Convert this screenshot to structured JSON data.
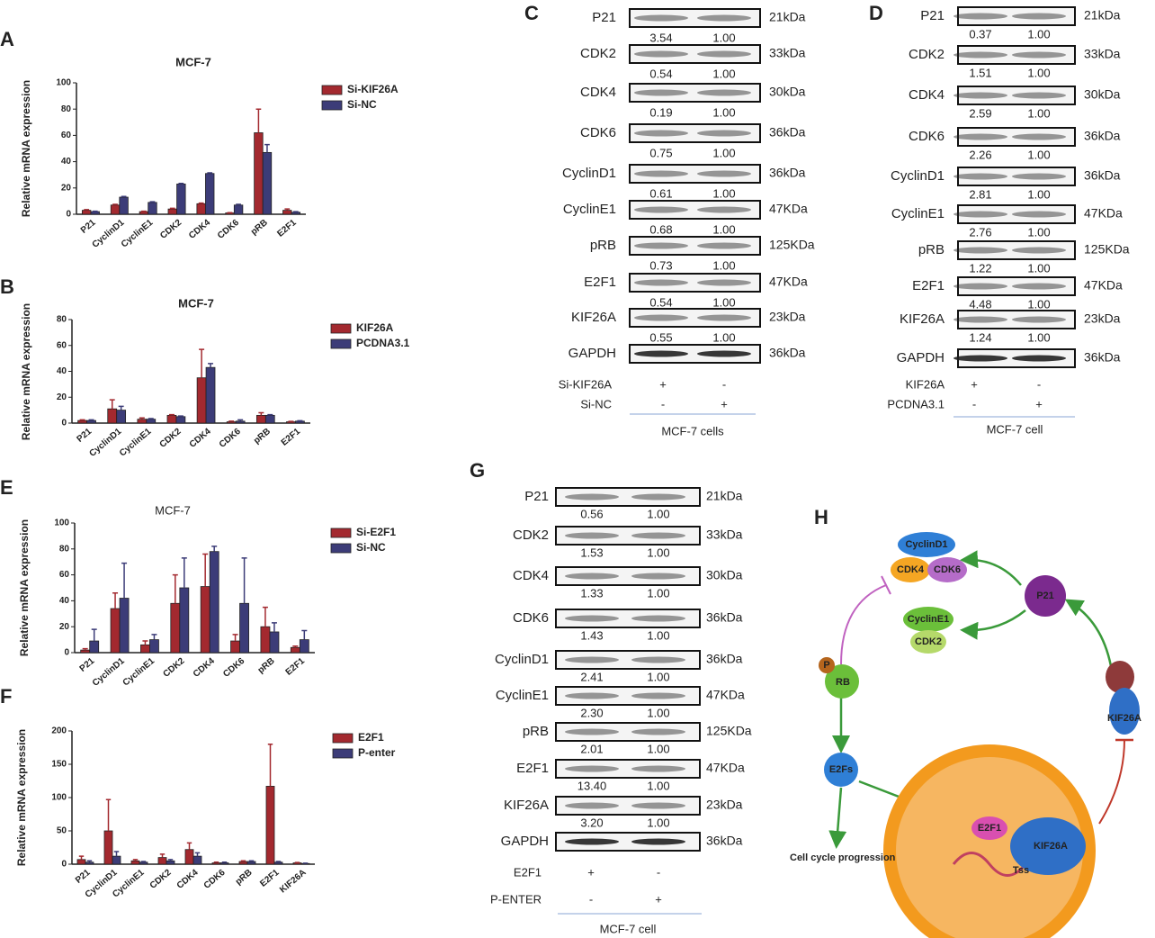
{
  "chart_data": [
    {
      "type": "bar",
      "label": "A",
      "title": "MCF-7",
      "y_label": "Relative mRNA expression",
      "categories": [
        "P21",
        "CyclinD1",
        "CyclinE1",
        "CDK2",
        "CDK4",
        "CDK6",
        "pRB",
        "E2F1"
      ],
      "series": [
        {
          "name": "Si-KIF26A",
          "color": "#a3292f",
          "values": [
            3,
            7,
            2,
            4,
            8,
            1,
            62,
            3
          ],
          "errors": [
            0.5,
            0.5,
            0.3,
            0.5,
            0.5,
            0.2,
            18,
            1
          ]
        },
        {
          "name": "Si-NC",
          "color": "#3c3c78",
          "values": [
            2,
            13,
            9,
            23,
            31,
            7,
            47,
            1.5
          ],
          "errors": [
            0.3,
            0.5,
            0.5,
            0.5,
            0.5,
            0.5,
            6,
            0.5
          ]
        }
      ],
      "ylim": [
        0,
        100
      ],
      "yticks": [
        0,
        20,
        40,
        60,
        80,
        100
      ],
      "legend": "right"
    },
    {
      "type": "bar",
      "label": "B",
      "title": "MCF-7",
      "y_label": "Relative mRNA expression",
      "categories": [
        "P21",
        "CyclinD1",
        "CyclinE1",
        "CDK2",
        "CDK4",
        "CDK6",
        "pRB",
        "E2F1"
      ],
      "series": [
        {
          "name": "KIF26A",
          "color": "#a3292f",
          "values": [
            2,
            11,
            3,
            6,
            35,
            1,
            6,
            1
          ],
          "errors": [
            0.5,
            7,
            1,
            0.5,
            22,
            0.5,
            2,
            0.3
          ]
        },
        {
          "name": "PCDNA3.1",
          "color": "#3c3c78",
          "values": [
            2,
            10,
            3,
            5,
            43,
            1.5,
            6,
            1.5
          ],
          "errors": [
            0.5,
            3,
            0.5,
            0.5,
            3,
            1,
            0.5,
            0.3
          ]
        }
      ],
      "ylim": [
        0,
        80
      ],
      "yticks": [
        0,
        20,
        40,
        60,
        80
      ],
      "legend": "right"
    },
    {
      "type": "bar",
      "label": "E",
      "title": "MCF-7",
      "y_label": "Relative mRNA expression",
      "categories": [
        "P21",
        "CyclinD1",
        "CyclinE1",
        "CDK2",
        "CDK4",
        "CDK6",
        "pRB",
        "E2F1"
      ],
      "series": [
        {
          "name": "Si-E2F1",
          "color": "#a3292f",
          "values": [
            2,
            34,
            6,
            38,
            51,
            9,
            20,
            4
          ],
          "errors": [
            1,
            12,
            3,
            22,
            25,
            5,
            15,
            1
          ]
        },
        {
          "name": "Si-NC",
          "color": "#3c3c78",
          "values": [
            9,
            42,
            10,
            50,
            78,
            38,
            16,
            10
          ],
          "errors": [
            9,
            27,
            4,
            23,
            4,
            35,
            7,
            7
          ]
        }
      ],
      "ylim": [
        0,
        100
      ],
      "yticks": [
        0,
        20,
        40,
        60,
        80,
        100
      ],
      "legend": "right"
    },
    {
      "type": "bar",
      "label": "F",
      "y_label": "Relative mRNA expression",
      "categories": [
        "P21",
        "CyclinD1",
        "CyclinE1",
        "CDK2",
        "CDK4",
        "CDK6",
        "pRB",
        "E2F1",
        "KIF26A"
      ],
      "series": [
        {
          "name": "E2F1",
          "color": "#a3292f",
          "values": [
            7,
            50,
            5,
            10,
            22,
            2,
            4,
            117,
            2
          ],
          "errors": [
            5,
            47,
            2,
            5,
            10,
            1,
            1,
            63,
            0.5
          ]
        },
        {
          "name": "P-enter",
          "color": "#3c3c78",
          "values": [
            3,
            12,
            3,
            5,
            12,
            2,
            4,
            3,
            1
          ],
          "errors": [
            2,
            7,
            1,
            2,
            5,
            1,
            1,
            1,
            0.5
          ]
        }
      ],
      "ylim": [
        0,
        200
      ],
      "yticks": [
        0,
        50,
        100,
        150,
        200
      ],
      "legend": "right"
    }
  ],
  "blots": [
    {
      "label": "C",
      "rows": [
        {
          "name": "P21",
          "kda": "21kDa",
          "ratios": [
            "3.54",
            "1.00"
          ]
        },
        {
          "name": "CDK2",
          "kda": "33kDa",
          "ratios": [
            "0.54",
            "1.00"
          ]
        },
        {
          "name": "CDK4",
          "kda": "30kDa",
          "ratios": [
            "0.19",
            "1.00"
          ]
        },
        {
          "name": "CDK6",
          "kda": "36kDa",
          "ratios": [
            "0.75",
            "1.00"
          ]
        },
        {
          "name": "CyclinD1",
          "kda": "36kDa",
          "ratios": [
            "0.61",
            "1.00"
          ]
        },
        {
          "name": "CyclinE1",
          "kda": "47KDa",
          "ratios": [
            "0.68",
            "1.00"
          ]
        },
        {
          "name": "pRB",
          "kda": "125KDa",
          "ratios": [
            "0.73",
            "1.00"
          ]
        },
        {
          "name": "E2F1",
          "kda": "47KDa",
          "ratios": [
            "0.54",
            "1.00"
          ]
        },
        {
          "name": "KIF26A",
          "kda": "23kDa",
          "ratios": [
            "0.55",
            "1.00"
          ]
        },
        {
          "name": "GAPDH",
          "kda": "36kDa"
        }
      ],
      "treatments": [
        {
          "name": "Si-KIF26A",
          "signs": [
            "+",
            "-"
          ]
        },
        {
          "name": "Si-NC",
          "signs": [
            "-",
            "+"
          ]
        }
      ],
      "footer": "MCF-7 cells"
    },
    {
      "label": "D",
      "rows": [
        {
          "name": "P21",
          "kda": "21kDa",
          "ratios": [
            "0.37",
            "1.00"
          ]
        },
        {
          "name": "CDK2",
          "kda": "33kDa",
          "ratios": [
            "1.51",
            "1.00"
          ]
        },
        {
          "name": "CDK4",
          "kda": "30kDa",
          "ratios": [
            "2.59",
            "1.00"
          ]
        },
        {
          "name": "CDK6",
          "kda": "36kDa",
          "ratios": [
            "2.26",
            "1.00"
          ]
        },
        {
          "name": "CyclinD1",
          "kda": "36kDa",
          "ratios": [
            "2.81",
            "1.00"
          ]
        },
        {
          "name": "CyclinE1",
          "kda": "47KDa",
          "ratios": [
            "2.76",
            "1.00"
          ]
        },
        {
          "name": "pRB",
          "kda": "125KDa",
          "ratios": [
            "1.22",
            "1.00"
          ]
        },
        {
          "name": "E2F1",
          "kda": "47KDa",
          "ratios": [
            "4.48",
            "1.00"
          ]
        },
        {
          "name": "KIF26A",
          "kda": "23kDa",
          "ratios": [
            "1.24",
            "1.00"
          ]
        },
        {
          "name": "GAPDH",
          "kda": "36kDa"
        }
      ],
      "treatments": [
        {
          "name": "KIF26A",
          "signs": [
            "+",
            "-"
          ]
        },
        {
          "name": "PCDNA3.1",
          "signs": [
            "-",
            "+"
          ]
        }
      ],
      "footer": "MCF-7 cell"
    },
    {
      "label": "G",
      "rows": [
        {
          "name": "P21",
          "kda": "21kDa",
          "ratios": [
            "0.56",
            "1.00"
          ]
        },
        {
          "name": "CDK2",
          "kda": "33kDa",
          "ratios": [
            "1.53",
            "1.00"
          ]
        },
        {
          "name": "CDK4",
          "kda": "30kDa",
          "ratios": [
            "1.33",
            "1.00"
          ]
        },
        {
          "name": "CDK6",
          "kda": "36kDa",
          "ratios": [
            "1.43",
            "1.00"
          ]
        },
        {
          "name": "CyclinD1",
          "kda": "36kDa",
          "ratios": [
            "2.41",
            "1.00"
          ]
        },
        {
          "name": "CyclinE1",
          "kda": "47KDa",
          "ratios": [
            "2.30",
            "1.00"
          ]
        },
        {
          "name": "pRB",
          "kda": "125KDa",
          "ratios": [
            "2.01",
            "1.00"
          ]
        },
        {
          "name": "E2F1",
          "kda": "47KDa",
          "ratios": [
            "13.40",
            "1.00"
          ]
        },
        {
          "name": "KIF26A",
          "kda": "23kDa",
          "ratios": [
            "3.20",
            "1.00"
          ]
        },
        {
          "name": "GAPDH",
          "kda": "36kDa"
        }
      ],
      "treatments": [
        {
          "name": "E2F1",
          "signs": [
            "+",
            "-"
          ]
        },
        {
          "name": "P-ENTER",
          "signs": [
            "-",
            "+"
          ]
        }
      ],
      "footer": "MCF-7 cell"
    }
  ],
  "diagram": {
    "label": "H",
    "labels": [
      "CyclinD1",
      "CDK4",
      "CDK6",
      "CyclinE1",
      "CDK2",
      "P21",
      "P",
      "RB",
      "E2Fs",
      "KIF26A",
      "E2F1",
      "KIF26A",
      "Tss",
      "Cell cycle progression"
    ]
  }
}
